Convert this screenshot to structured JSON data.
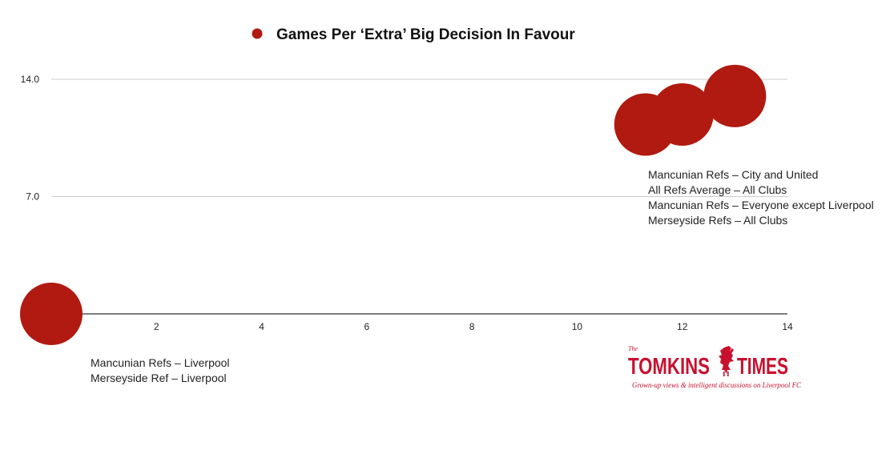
{
  "colors": {
    "marker": "#b01a10",
    "axis": "#333333",
    "grid": "#cccccc",
    "brand": "#c8102e"
  },
  "chart_data": {
    "type": "scatter",
    "title": "Games Per ‘Extra’ Big Decision In Favour",
    "legend": {
      "label": "Games Per ‘Extra’ Big Decision In Favour",
      "placement": "top-center"
    },
    "xlim": [
      0,
      14
    ],
    "ylim": [
      0,
      14
    ],
    "x_ticks": [
      2,
      4,
      6,
      8,
      10,
      12,
      14
    ],
    "y_ticks": [
      7,
      14
    ],
    "y_tick_labels": [
      "7.0",
      "14.0"
    ],
    "x_tick_labels": [
      "2",
      "4",
      "6",
      "8",
      "10",
      "12",
      "14"
    ],
    "grid": true,
    "points": [
      {
        "x": 0,
        "y": 0
      },
      {
        "x": 11.3,
        "y": 11.3
      },
      {
        "x": 12,
        "y": 11.9
      },
      {
        "x": 13,
        "y": 13
      }
    ],
    "annotations": [
      {
        "lines": [
          "Mancunian Refs – City and United",
          "All Refs Average – All Clubs",
          "Mancunian Refs – Everyone except Liverpool",
          "Merseyside Refs – All Clubs"
        ]
      },
      {
        "lines": [
          "Mancunian Refs – Liverpool",
          "Merseyside Ref – Liverpool"
        ]
      }
    ]
  },
  "logo": {
    "the": "The",
    "word1": "TOMKINS",
    "word2": "TIMES",
    "tagline": "Grown-up views & intelligent discussions on Liverpool FC"
  }
}
